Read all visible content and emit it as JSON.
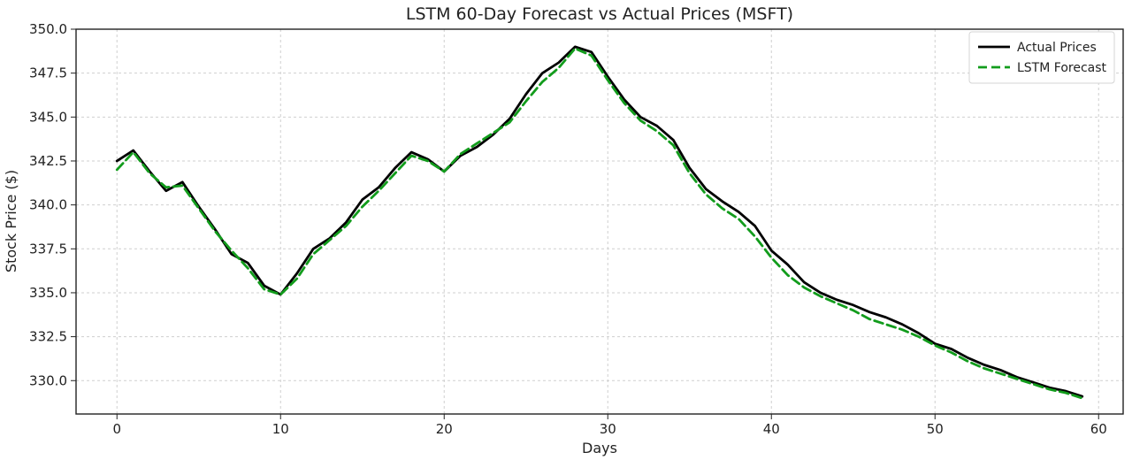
{
  "chart_data": {
    "type": "line",
    "title": "LSTM 60-Day Forecast vs Actual Prices (MSFT)",
    "xlabel": "Days",
    "ylabel": "Stock Price ($)",
    "xlim": [
      -2.5,
      61.5
    ],
    "ylim": [
      328.1,
      350.0
    ],
    "xticks": [
      0,
      10,
      20,
      30,
      40,
      50,
      60
    ],
    "yticks": [
      330.0,
      332.5,
      335.0,
      337.5,
      340.0,
      342.5,
      345.0,
      347.5,
      350.0
    ],
    "xtick_labels": [
      "0",
      "10",
      "20",
      "30",
      "40",
      "50",
      "60"
    ],
    "ytick_labels": [
      "330.0",
      "332.5",
      "335.0",
      "337.5",
      "340.0",
      "342.5",
      "345.0",
      "347.5",
      "350.0"
    ],
    "grid": true,
    "legend_position": "top-right",
    "x": [
      0,
      1,
      2,
      3,
      4,
      5,
      6,
      7,
      8,
      9,
      10,
      11,
      12,
      13,
      14,
      15,
      16,
      17,
      18,
      19,
      20,
      21,
      22,
      23,
      24,
      25,
      26,
      27,
      28,
      29,
      30,
      31,
      32,
      33,
      34,
      35,
      36,
      37,
      38,
      39,
      40,
      41,
      42,
      43,
      44,
      45,
      46,
      47,
      48,
      49,
      50,
      51,
      52,
      53,
      54,
      55,
      56,
      57,
      58,
      59
    ],
    "series": [
      {
        "name": "Actual Prices",
        "color": "#000000",
        "style": "solid",
        "values": [
          342.5,
          343.1,
          341.9,
          340.8,
          341.3,
          339.9,
          338.6,
          337.2,
          336.7,
          335.4,
          334.9,
          336.1,
          337.5,
          338.1,
          339.0,
          340.3,
          341.0,
          342.1,
          343.0,
          342.6,
          341.9,
          342.8,
          343.3,
          344.0,
          344.9,
          346.3,
          347.5,
          348.1,
          349.0,
          348.7,
          347.3,
          346.0,
          345.0,
          344.5,
          343.7,
          342.1,
          340.9,
          340.2,
          339.6,
          338.8,
          337.4,
          336.6,
          335.6,
          335.0,
          334.6,
          334.3,
          333.9,
          333.6,
          333.2,
          332.7,
          332.1,
          331.8,
          331.3,
          330.9,
          330.6,
          330.2,
          329.9,
          329.6,
          329.4,
          329.1
        ]
      },
      {
        "name": "LSTM Forecast",
        "color": "#129c1c",
        "style": "dashed",
        "values": [
          342.0,
          343.0,
          341.8,
          341.0,
          341.1,
          339.8,
          338.5,
          337.4,
          336.4,
          335.2,
          334.9,
          335.8,
          337.2,
          338.0,
          338.8,
          339.9,
          340.8,
          341.8,
          342.8,
          342.5,
          341.9,
          342.9,
          343.5,
          344.1,
          344.7,
          345.9,
          347.0,
          347.8,
          348.9,
          348.5,
          347.1,
          345.8,
          344.8,
          344.2,
          343.4,
          341.8,
          340.6,
          339.8,
          339.2,
          338.2,
          337.0,
          336.0,
          335.3,
          334.8,
          334.4,
          334.0,
          333.5,
          333.2,
          332.9,
          332.5,
          332.0,
          331.6,
          331.1,
          330.7,
          330.4,
          330.1,
          329.8,
          329.5,
          329.3,
          329.0
        ]
      }
    ]
  }
}
